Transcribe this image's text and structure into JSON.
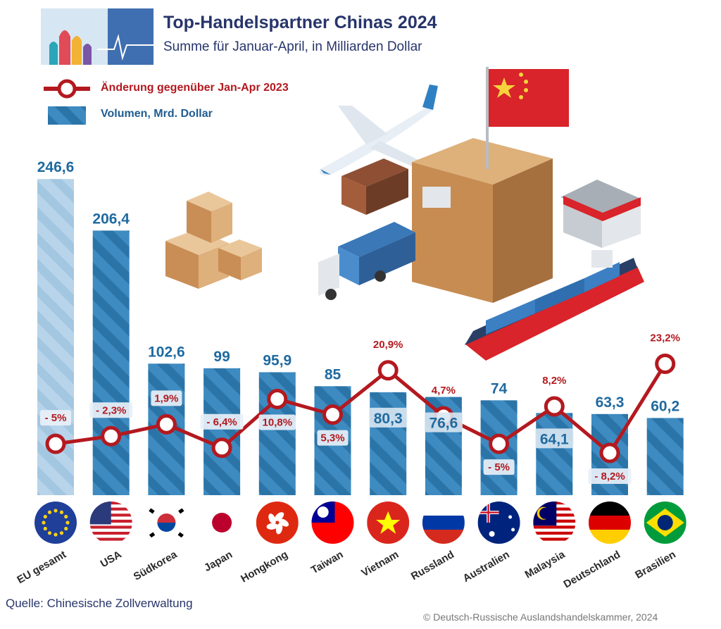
{
  "header": {
    "title": "Top-Handelspartner Chinas 2024",
    "subtitle": "Summe für Januar-April, in Milliarden Dollar"
  },
  "legend": {
    "line_label": "Änderung gegenüber Jan-Apr 2023",
    "bar_label": "Volumen, Mrd. Dollar"
  },
  "footer": {
    "source": "Quelle: Chinesische Zollverwaltung",
    "copyright": "© Deutsch-Russische Auslandshandelskammer, 2024"
  },
  "colors": {
    "bar": "#2c7fb8",
    "bar_light": "#a9cbe3",
    "line": "#b3191f",
    "value_label": "#1f6aa0",
    "title": "#27356b"
  },
  "chart_data": {
    "type": "bar",
    "title": "Top-Handelspartner Chinas 2024",
    "subtitle": "Summe für Januar-April, in Milliarden Dollar",
    "categories": [
      "EU gesamt",
      "USA",
      "Südkorea",
      "Japan",
      "Hongkong",
      "Taiwan",
      "Vietnam",
      "Russland",
      "Australien",
      "Malaysia",
      "Deutschland",
      "Brasilien"
    ],
    "series": [
      {
        "name": "Volumen, Mrd. Dollar",
        "type": "bar",
        "values": [
          246.6,
          206.4,
          102.6,
          99,
          95.9,
          85,
          80.3,
          76.6,
          74,
          64.1,
          63.3,
          60.2
        ],
        "labels": [
          "246,6",
          "206,4",
          "102,6",
          "99",
          "95,9",
          "85",
          "80,3",
          "76,6",
          "74",
          "64,1",
          "63,3",
          "60,2"
        ]
      },
      {
        "name": "Änderung gegenüber Jan-Apr 2023",
        "type": "line",
        "unit": "%",
        "values": [
          -5,
          -2.3,
          1.9,
          -6.4,
          10.8,
          5.3,
          20.9,
          4.7,
          -5,
          8.2,
          -8.2,
          23.2
        ],
        "labels": [
          "- 5%",
          "- 2,3%",
          "1,9%",
          "- 6,4%",
          "10,8%",
          "5,3%",
          "20,9%",
          "4,7%",
          "- 5%",
          "8,2%",
          "- 8,2%",
          "23,2%"
        ]
      }
    ],
    "xlabel": "",
    "ylabel": "",
    "ylim": [
      0,
      250
    ],
    "grid": false,
    "legend_position": "top-left"
  }
}
